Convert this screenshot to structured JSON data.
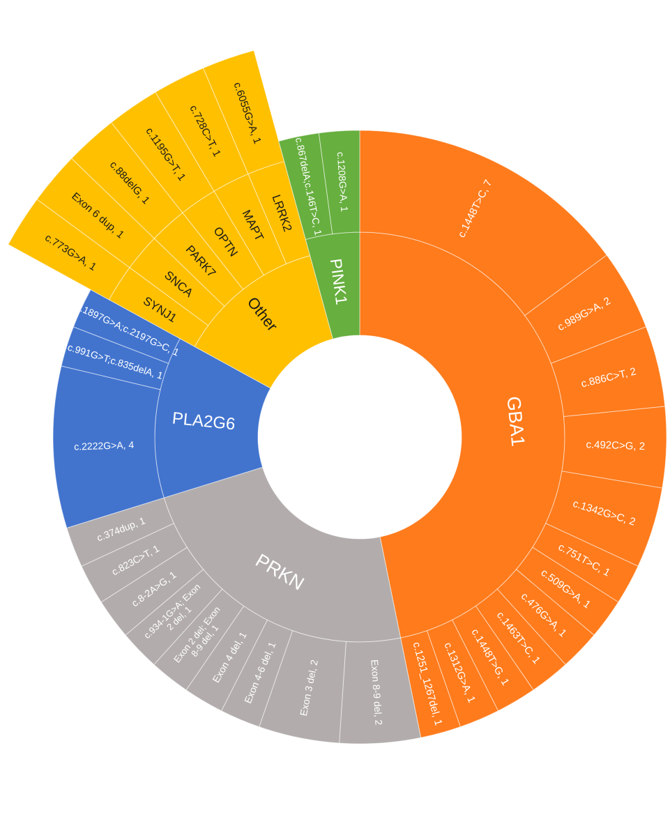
{
  "chart_data": {
    "type": "sunburst",
    "title": "",
    "colors": {
      "GBA1": "#FF7B1C",
      "PRKN": "#B2ADAC",
      "PLA2G6": "#4274CE",
      "Other": "#FFC000",
      "PINK1": "#67AF3F",
      "label_dark": "#1a1a1a",
      "label_light": "#ffffff"
    },
    "groups": [
      {
        "gene": "GBA1",
        "label": "GBA1",
        "variants": [
          {
            "label": "c.1448T>C, 7",
            "count": 7
          },
          {
            "label": "c.989G>A, 2",
            "count": 2
          },
          {
            "label": "c.886C>T, 2",
            "count": 2
          },
          {
            "label": "c.492C>G, 2",
            "count": 2
          },
          {
            "label": "c.1342G>C, 2",
            "count": 2
          },
          {
            "label": "c.751T>C, 1",
            "count": 1
          },
          {
            "label": "c.509G>A, 1",
            "count": 1
          },
          {
            "label": "c.476G>A, 1",
            "count": 1
          },
          {
            "label": "c.1463T>C, 1",
            "count": 1
          },
          {
            "label": "c.1448T>G, 1",
            "count": 1
          },
          {
            "label": "c.1312G>A, 1",
            "count": 1
          },
          {
            "label": "c.1251_1267del, 1",
            "count": 1
          }
        ]
      },
      {
        "gene": "PRKN",
        "label": "PRKN",
        "variants": [
          {
            "label": "Exon 8-9 del, 2",
            "count": 2
          },
          {
            "label": "Exon 3 del, 2",
            "count": 2
          },
          {
            "label": "Exon 4-6 del, 1",
            "count": 1
          },
          {
            "label": "Exon 4 del, 1",
            "count": 1
          },
          {
            "label": "Exon 2 del; Exon 8-9 del, 1",
            "count": 1
          },
          {
            "label": "c.934-1G>A; Exon 2 del, 1",
            "count": 1
          },
          {
            "label": "c.8-2A>G, 1",
            "count": 1
          },
          {
            "label": "c.823C>T, 1",
            "count": 1
          },
          {
            "label": "c.374dup, 1",
            "count": 1
          }
        ]
      },
      {
        "gene": "PLA2G6",
        "label": "PLA2G6",
        "variants": [
          {
            "label": "c.2222G>A, 4",
            "count": 4
          },
          {
            "label": "c.991G>T;c.835delA, 1",
            "count": 1
          },
          {
            "label": "c.1897G>A;c.2197G>C, 1",
            "count": 1
          }
        ]
      },
      {
        "gene": "Other",
        "label": "Other",
        "subgroups": [
          {
            "label": "SYNJ1",
            "variants": [
              {
                "label": "c.773G>A, 1",
                "count": 1
              }
            ]
          },
          {
            "label": "SNCA",
            "variants": [
              {
                "label": "Exon 6 dup, 1",
                "count": 1
              }
            ]
          },
          {
            "label": "PARK7",
            "variants": [
              {
                "label": "c.88delG, 1",
                "count": 1
              }
            ]
          },
          {
            "label": "OPTN",
            "variants": [
              {
                "label": "c.1195G>T, 1",
                "count": 1
              }
            ]
          },
          {
            "label": "MAPT",
            "variants": [
              {
                "label": "c.728C>T, 1",
                "count": 1
              }
            ]
          },
          {
            "label": "LRRK2",
            "variants": [
              {
                "label": "c.6055G>A, 1",
                "count": 1
              }
            ]
          }
        ]
      },
      {
        "gene": "PINK1",
        "label": "PINK1",
        "variants": [
          {
            "label": "c.867delA;c.146T>C, 1",
            "count": 1
          },
          {
            "label": "c.1208G>A, 1",
            "count": 1
          }
        ]
      }
    ]
  }
}
